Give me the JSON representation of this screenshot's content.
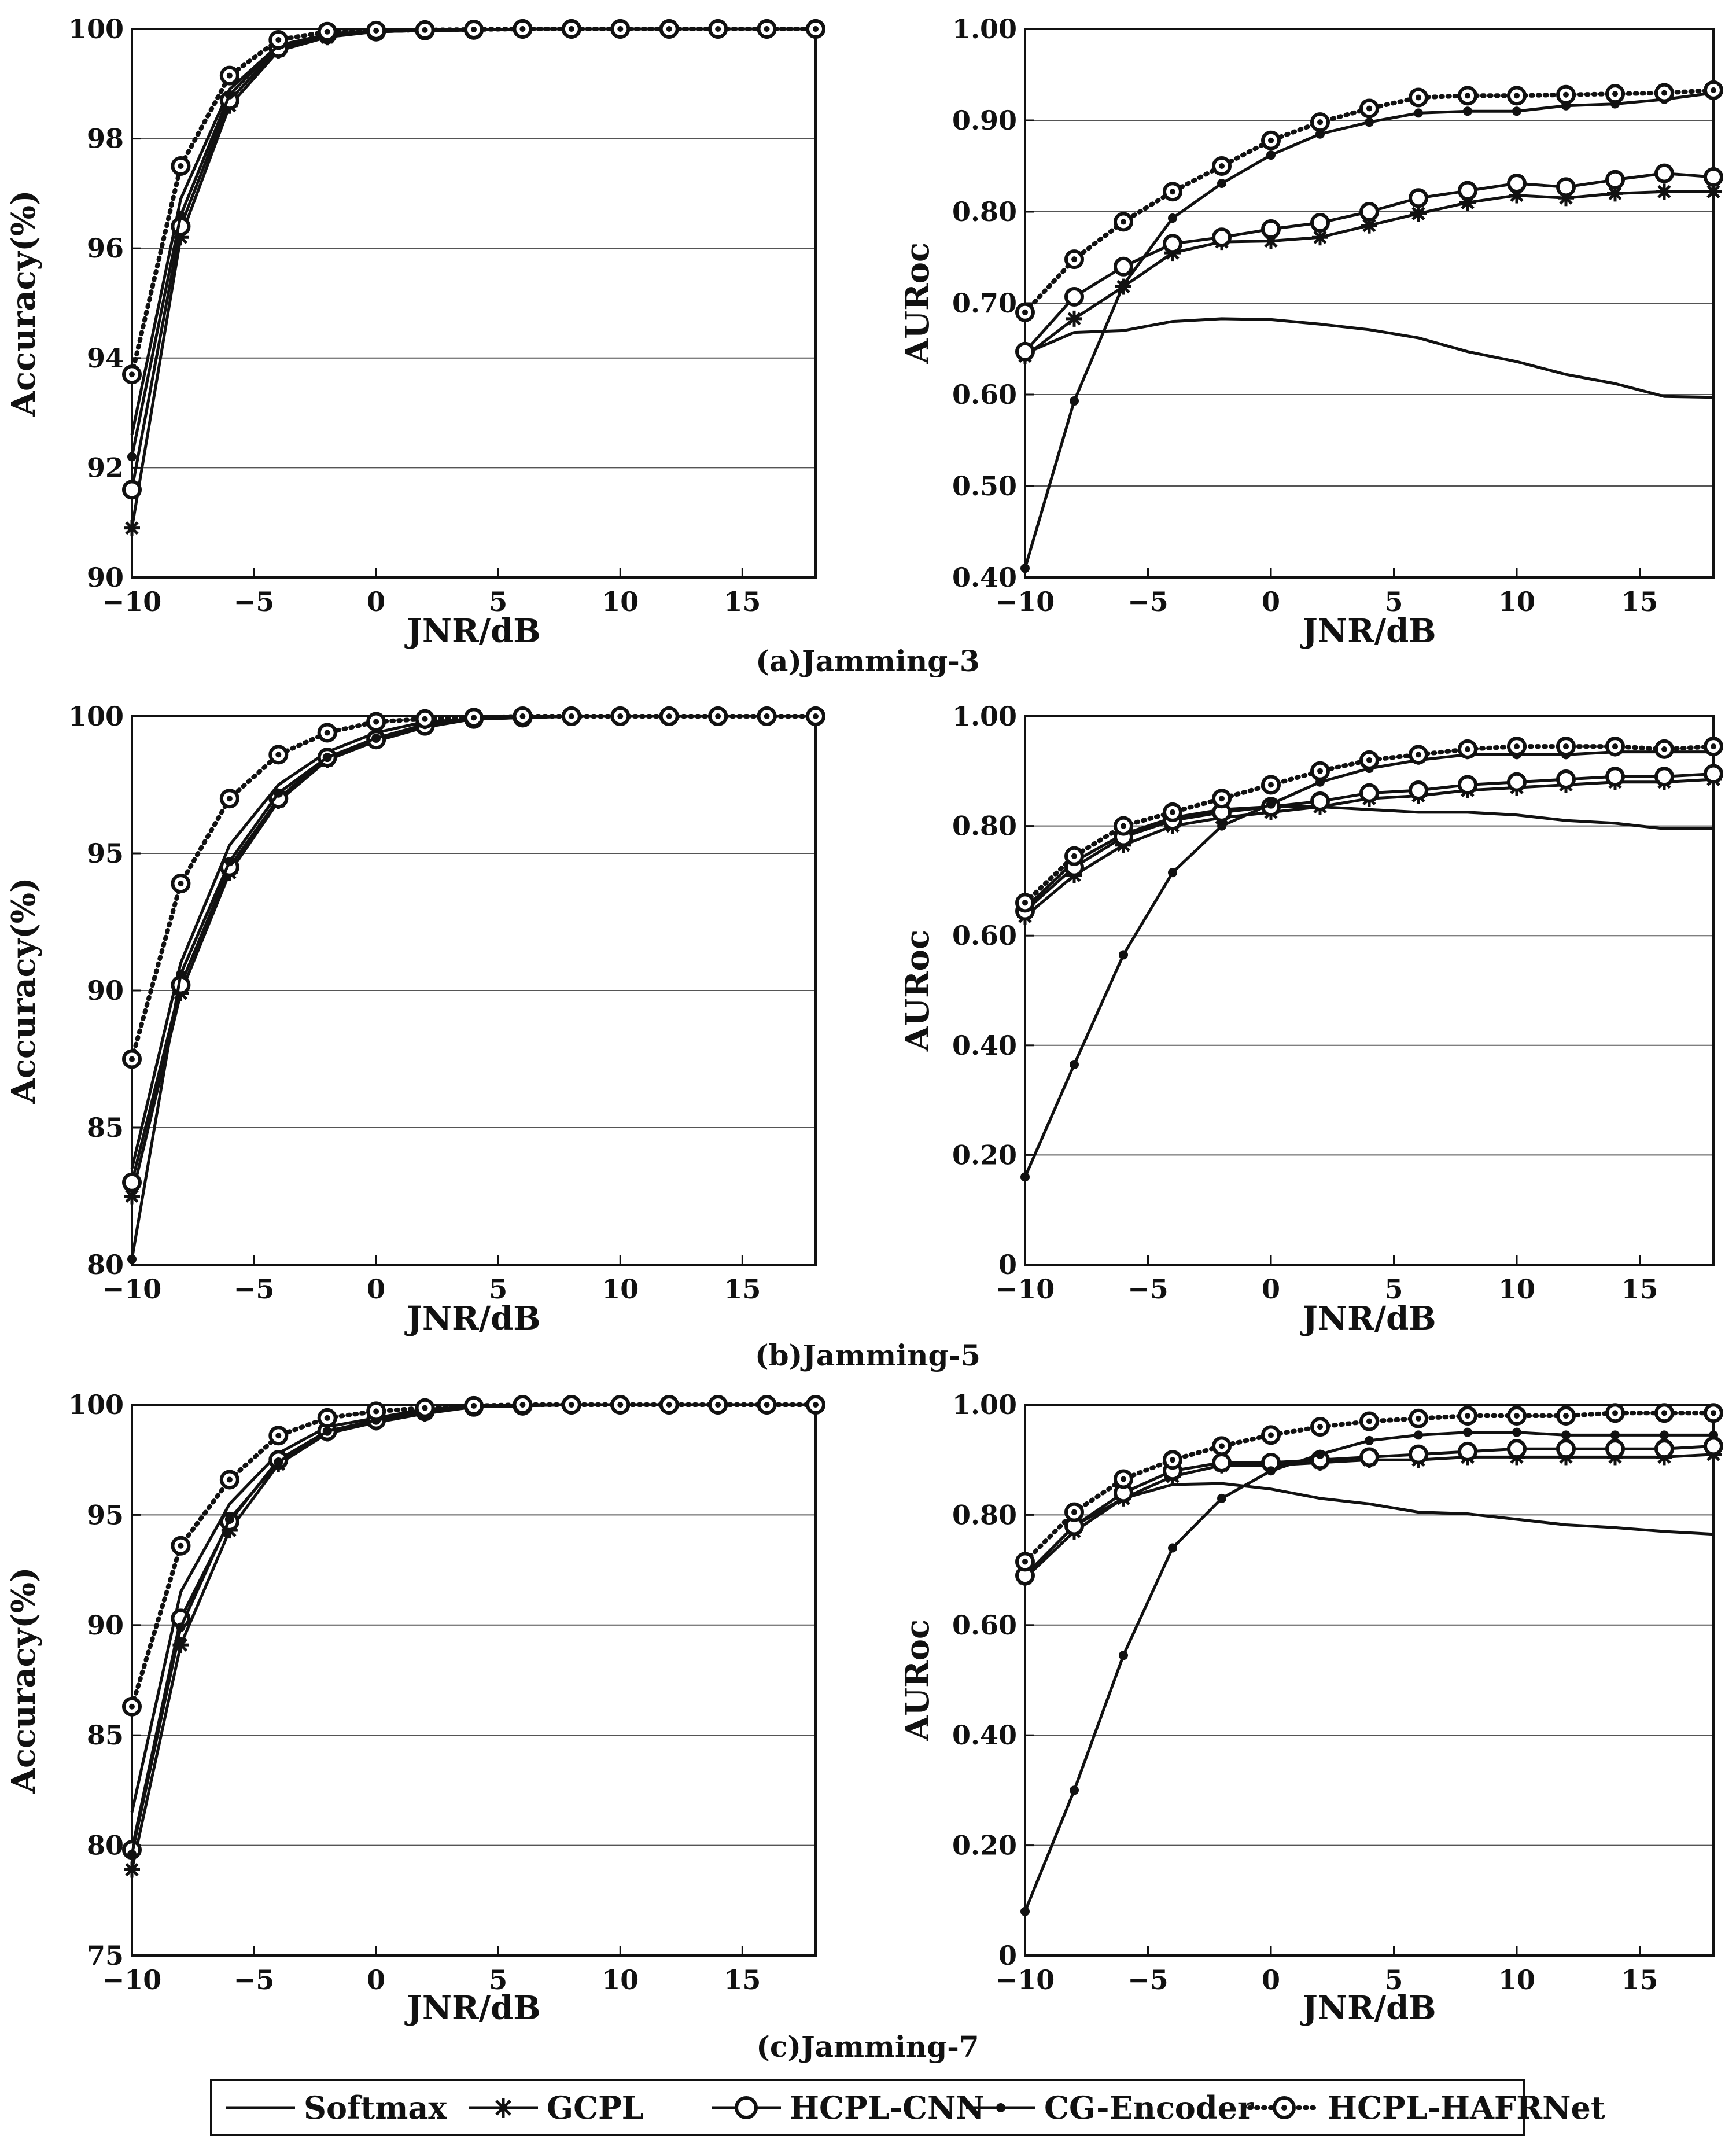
{
  "chart_data": [
    {
      "id": "a-acc",
      "type": "line",
      "ylabel": "Accuracy(%)",
      "xlabel": "JNR/dB",
      "xlim": [
        -10,
        18
      ],
      "ylim": [
        90,
        100
      ],
      "xticks": [
        -10,
        -5,
        0,
        5,
        10,
        15
      ],
      "xtick_labels": [
        "−10",
        "−5",
        "0",
        "5",
        "10",
        "15"
      ],
      "yticks": [
        90,
        92,
        94,
        96,
        98,
        100
      ],
      "ytick_labels": [
        "90",
        "92",
        "94",
        "96",
        "98",
        "100"
      ],
      "x": [
        -10,
        -8,
        -6,
        -4,
        -2,
        0,
        2,
        4,
        6,
        8,
        10,
        12,
        14,
        16,
        18
      ],
      "series": [
        {
          "name": "Softmax",
          "values": [
            92.6,
            96.9,
            98.9,
            99.7,
            99.9,
            99.95,
            99.97,
            99.98,
            100,
            100,
            100,
            100,
            100,
            100,
            100
          ]
        },
        {
          "name": "GCPL",
          "values": [
            90.9,
            96.2,
            98.6,
            99.6,
            99.85,
            99.95,
            99.97,
            99.98,
            100,
            100,
            100,
            100,
            100,
            100,
            100
          ]
        },
        {
          "name": "HCPL-CNN",
          "values": [
            91.6,
            96.4,
            98.7,
            99.65,
            99.9,
            99.95,
            99.97,
            99.98,
            100,
            100,
            100,
            100,
            100,
            100,
            100
          ]
        },
        {
          "name": "CG-Encoder",
          "values": [
            92.2,
            96.6,
            98.8,
            99.7,
            99.9,
            99.95,
            99.97,
            99.98,
            100,
            100,
            100,
            100,
            100,
            100,
            100
          ]
        },
        {
          "name": "HCPL-HAFRNet",
          "values": [
            93.7,
            97.5,
            99.15,
            99.8,
            99.95,
            99.97,
            99.98,
            99.99,
            100,
            100,
            100,
            100,
            100,
            100,
            100
          ]
        }
      ]
    },
    {
      "id": "a-auroc",
      "type": "line",
      "ylabel": "AURoc",
      "xlabel": "JNR/dB",
      "xlim": [
        -10,
        18
      ],
      "ylim": [
        0.4,
        1.0
      ],
      "xticks": [
        -10,
        -5,
        0,
        5,
        10,
        15
      ],
      "xtick_labels": [
        "−10",
        "−5",
        "0",
        "5",
        "10",
        "15"
      ],
      "yticks": [
        0.4,
        0.5,
        0.6,
        0.7,
        0.8,
        0.9,
        1.0
      ],
      "ytick_labels": [
        "0.40",
        "0.50",
        "0.60",
        "0.70",
        "0.80",
        "0.90",
        "1.00"
      ],
      "x": [
        -10,
        -8,
        -6,
        -4,
        -2,
        0,
        2,
        4,
        6,
        8,
        10,
        12,
        14,
        16,
        18
      ],
      "series": [
        {
          "name": "Softmax",
          "values": [
            0.645,
            0.668,
            0.67,
            0.68,
            0.683,
            0.682,
            0.677,
            0.671,
            0.662,
            0.647,
            0.636,
            0.622,
            0.612,
            0.598,
            0.597
          ]
        },
        {
          "name": "GCPL",
          "values": [
            0.642,
            0.683,
            0.718,
            0.755,
            0.767,
            0.768,
            0.772,
            0.785,
            0.798,
            0.81,
            0.818,
            0.815,
            0.82,
            0.822,
            0.822
          ]
        },
        {
          "name": "HCPL-CNN",
          "values": [
            0.647,
            0.707,
            0.74,
            0.765,
            0.772,
            0.781,
            0.788,
            0.8,
            0.815,
            0.823,
            0.831,
            0.827,
            0.835,
            0.842,
            0.838
          ]
        },
        {
          "name": "CG-Encoder",
          "values": [
            0.41,
            0.593,
            0.72,
            0.793,
            0.831,
            0.862,
            0.885,
            0.898,
            0.908,
            0.91,
            0.91,
            0.916,
            0.918,
            0.923,
            0.93
          ]
        },
        {
          "name": "HCPL-HAFRNet",
          "values": [
            0.69,
            0.748,
            0.789,
            0.822,
            0.85,
            0.878,
            0.898,
            0.913,
            0.925,
            0.927,
            0.927,
            0.928,
            0.929,
            0.93,
            0.933
          ]
        }
      ]
    },
    {
      "id": "b-acc",
      "type": "line",
      "ylabel": "Accuracy(%)",
      "xlabel": "JNR/dB",
      "xlim": [
        -10,
        18
      ],
      "ylim": [
        80,
        100
      ],
      "xticks": [
        -10,
        -5,
        0,
        5,
        10,
        15
      ],
      "xtick_labels": [
        "−10",
        "−5",
        "0",
        "5",
        "10",
        "15"
      ],
      "yticks": [
        80,
        85,
        90,
        95,
        100
      ],
      "ytick_labels": [
        "80",
        "85",
        "90",
        "95",
        "100"
      ],
      "x": [
        -10,
        -8,
        -6,
        -4,
        -2,
        0,
        2,
        4,
        6,
        8,
        10,
        12,
        14,
        16,
        18
      ],
      "series": [
        {
          "name": "Softmax",
          "values": [
            83.5,
            91.0,
            95.3,
            97.5,
            98.7,
            99.4,
            99.8,
            99.9,
            100,
            100,
            100,
            100,
            100,
            100,
            100
          ]
        },
        {
          "name": "GCPL",
          "values": [
            82.5,
            89.9,
            94.3,
            96.9,
            98.4,
            99.1,
            99.6,
            99.9,
            99.95,
            100,
            100,
            100,
            100,
            100,
            100
          ]
        },
        {
          "name": "HCPL-CNN",
          "values": [
            83.0,
            90.2,
            94.5,
            97.0,
            98.5,
            99.15,
            99.65,
            99.9,
            99.95,
            100,
            100,
            100,
            100,
            100,
            100
          ]
        },
        {
          "name": "CG-Encoder",
          "values": [
            80.2,
            90.6,
            94.7,
            97.2,
            98.5,
            99.2,
            99.7,
            99.9,
            99.95,
            100,
            100,
            100,
            100,
            100,
            100
          ]
        },
        {
          "name": "HCPL-HAFRNet",
          "values": [
            87.5,
            93.9,
            97.0,
            98.6,
            99.4,
            99.8,
            99.9,
            99.95,
            100,
            100,
            100,
            100,
            100,
            100,
            100
          ]
        }
      ]
    },
    {
      "id": "b-auroc",
      "type": "line",
      "ylabel": "AURoc",
      "xlabel": "JNR/dB",
      "xlim": [
        -10,
        18
      ],
      "ylim": [
        0,
        1.0
      ],
      "xticks": [
        -10,
        -5,
        0,
        5,
        10,
        15
      ],
      "xtick_labels": [
        "−10",
        "−5",
        "0",
        "5",
        "10",
        "15"
      ],
      "yticks": [
        0,
        0.2,
        0.4,
        0.6,
        0.8,
        1.0
      ],
      "ytick_labels": [
        "0",
        "0.20",
        "0.40",
        "0.60",
        "0.80",
        "1.00"
      ],
      "x": [
        -10,
        -8,
        -6,
        -4,
        -2,
        0,
        2,
        4,
        6,
        8,
        10,
        12,
        14,
        16,
        18
      ],
      "series": [
        {
          "name": "Softmax",
          "values": [
            0.65,
            0.735,
            0.785,
            0.815,
            0.83,
            0.835,
            0.835,
            0.83,
            0.825,
            0.825,
            0.82,
            0.81,
            0.805,
            0.795,
            0.795
          ]
        },
        {
          "name": "GCPL",
          "values": [
            0.635,
            0.71,
            0.765,
            0.8,
            0.815,
            0.825,
            0.835,
            0.85,
            0.855,
            0.865,
            0.87,
            0.875,
            0.88,
            0.88,
            0.885
          ]
        },
        {
          "name": "HCPL-CNN",
          "values": [
            0.645,
            0.725,
            0.78,
            0.81,
            0.825,
            0.835,
            0.845,
            0.86,
            0.865,
            0.875,
            0.88,
            0.885,
            0.89,
            0.89,
            0.895
          ]
        },
        {
          "name": "CG-Encoder",
          "values": [
            0.16,
            0.365,
            0.565,
            0.715,
            0.8,
            0.84,
            0.88,
            0.905,
            0.92,
            0.93,
            0.93,
            0.93,
            0.935,
            0.935,
            0.935
          ]
        },
        {
          "name": "HCPL-HAFRNet",
          "values": [
            0.66,
            0.745,
            0.8,
            0.825,
            0.85,
            0.875,
            0.9,
            0.92,
            0.93,
            0.94,
            0.945,
            0.945,
            0.945,
            0.94,
            0.945
          ]
        }
      ]
    },
    {
      "id": "c-acc",
      "type": "line",
      "ylabel": "Accuracy(%)",
      "xlabel": "JNR/dB",
      "xlim": [
        -10,
        18
      ],
      "ylim": [
        75,
        100
      ],
      "xticks": [
        -10,
        -5,
        0,
        5,
        10,
        15
      ],
      "xtick_labels": [
        "−10",
        "−5",
        "0",
        "5",
        "10",
        "15"
      ],
      "yticks": [
        75,
        80,
        85,
        90,
        95,
        100
      ],
      "ytick_labels": [
        "75",
        "80",
        "85",
        "90",
        "95",
        "100"
      ],
      "x": [
        -10,
        -8,
        -6,
        -4,
        -2,
        0,
        2,
        4,
        6,
        8,
        10,
        12,
        14,
        16,
        18
      ],
      "series": [
        {
          "name": "Softmax",
          "values": [
            81.5,
            91.5,
            95.5,
            97.8,
            99.0,
            99.4,
            99.8,
            99.9,
            100,
            100,
            100,
            100,
            100,
            100,
            100
          ]
        },
        {
          "name": "GCPL",
          "values": [
            78.9,
            89.1,
            94.3,
            97.3,
            98.7,
            99.2,
            99.6,
            99.9,
            99.95,
            100,
            100,
            100,
            100,
            100,
            100
          ]
        },
        {
          "name": "HCPL-CNN",
          "values": [
            79.8,
            90.3,
            94.7,
            97.5,
            98.8,
            99.3,
            99.7,
            99.9,
            99.95,
            100,
            100,
            100,
            100,
            100,
            100
          ]
        },
        {
          "name": "CG-Encoder",
          "values": [
            79.6,
            89.9,
            94.8,
            97.4,
            98.8,
            99.3,
            99.7,
            99.9,
            99.95,
            100,
            100,
            100,
            100,
            100,
            100
          ]
        },
        {
          "name": "HCPL-HAFRNet",
          "values": [
            86.3,
            93.6,
            96.6,
            98.6,
            99.4,
            99.7,
            99.85,
            99.95,
            100,
            100,
            100,
            100,
            100,
            100,
            100
          ]
        }
      ]
    },
    {
      "id": "c-auroc",
      "type": "line",
      "ylabel": "AURoc",
      "xlabel": "JNR/dB",
      "xlim": [
        -10,
        18
      ],
      "ylim": [
        0,
        1.0
      ],
      "xticks": [
        -10,
        -5,
        0,
        5,
        10,
        15
      ],
      "xtick_labels": [
        "−10",
        "−5",
        "0",
        "5",
        "10",
        "15"
      ],
      "yticks": [
        0,
        0.2,
        0.4,
        0.6,
        0.8,
        1.0
      ],
      "ytick_labels": [
        "0",
        "0.20",
        "0.40",
        "0.60",
        "0.80",
        "1.00"
      ],
      "x": [
        -10,
        -8,
        -6,
        -4,
        -2,
        0,
        2,
        4,
        6,
        8,
        10,
        12,
        14,
        16,
        18
      ],
      "series": [
        {
          "name": "Softmax",
          "values": [
            0.69,
            0.78,
            0.83,
            0.855,
            0.857,
            0.847,
            0.83,
            0.82,
            0.805,
            0.802,
            0.792,
            0.782,
            0.777,
            0.77,
            0.765
          ]
        },
        {
          "name": "GCPL",
          "values": [
            0.685,
            0.77,
            0.83,
            0.87,
            0.89,
            0.89,
            0.895,
            0.9,
            0.9,
            0.905,
            0.905,
            0.905,
            0.905,
            0.905,
            0.91
          ]
        },
        {
          "name": "HCPL-CNN",
          "values": [
            0.69,
            0.78,
            0.84,
            0.88,
            0.895,
            0.895,
            0.9,
            0.905,
            0.91,
            0.915,
            0.92,
            0.92,
            0.92,
            0.92,
            0.925
          ]
        },
        {
          "name": "CG-Encoder",
          "values": [
            0.08,
            0.3,
            0.545,
            0.74,
            0.83,
            0.88,
            0.91,
            0.935,
            0.945,
            0.95,
            0.95,
            0.945,
            0.945,
            0.945,
            0.945
          ]
        },
        {
          "name": "HCPL-HAFRNet",
          "values": [
            0.715,
            0.805,
            0.865,
            0.9,
            0.925,
            0.945,
            0.96,
            0.97,
            0.975,
            0.98,
            0.98,
            0.98,
            0.985,
            0.985,
            0.985
          ]
        }
      ]
    }
  ],
  "captions": {
    "a": "(a)Jamming-3",
    "b": "(b)Jamming-5",
    "c": "(c)Jamming-7"
  },
  "legend": {
    "items": [
      {
        "name": "Softmax",
        "style": "solid",
        "marker": "none"
      },
      {
        "name": "GCPL",
        "style": "solid",
        "marker": "asterisk"
      },
      {
        "name": "HCPL-CNN",
        "style": "solid",
        "marker": "open-circle"
      },
      {
        "name": "CG-Encoder",
        "style": "solid",
        "marker": "dot"
      },
      {
        "name": "HCPL-HAFRNet",
        "style": "dotted",
        "marker": "circled-dot"
      }
    ]
  },
  "colors": {
    "line": "#111111",
    "grid": "#555555",
    "background": "#ffffff"
  }
}
